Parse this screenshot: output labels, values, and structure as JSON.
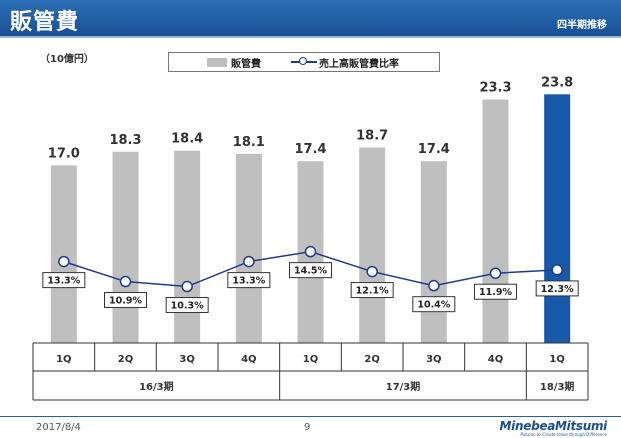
{
  "header": {
    "title": "販管費",
    "subtitle": "四半期推移"
  },
  "unit_label": "（10億円）",
  "legend": {
    "bar_label": "販管費",
    "line_label": "売上高販管費比率"
  },
  "chart_data": {
    "type": "bar",
    "categories": [
      "1Q",
      "2Q",
      "3Q",
      "4Q",
      "1Q",
      "2Q",
      "3Q",
      "4Q",
      "1Q"
    ],
    "groups": [
      {
        "label": "16/3期",
        "count": 4
      },
      {
        "label": "17/3期",
        "count": 4
      },
      {
        "label": "18/3期",
        "count": 1
      }
    ],
    "series": [
      {
        "name": "販管費",
        "values": [
          17.0,
          18.3,
          18.4,
          18.1,
          17.4,
          18.7,
          17.4,
          23.3,
          23.8
        ],
        "labels": [
          "17.0",
          "18.3",
          "18.4",
          "18.1",
          "17.4",
          "18.7",
          "17.4",
          "23.3",
          "23.8"
        ]
      },
      {
        "name": "売上高販管費比率",
        "values": [
          13.3,
          10.9,
          10.3,
          13.3,
          14.5,
          12.1,
          10.4,
          11.9,
          12.3
        ],
        "labels": [
          "13.3%",
          "10.9%",
          "10.3%",
          "13.3%",
          "14.5%",
          "12.1%",
          "10.4%",
          "11.9%",
          "12.3%"
        ]
      }
    ],
    "colors": {
      "bar": "#bfbfbf",
      "highlight_bar": "#1858a8",
      "line": "#1f3c88"
    },
    "highlight_index": 8
  },
  "footer": {
    "date": "2017/8/4",
    "page": "9",
    "logo": "MinebeaMitsumi",
    "tagline": "Passion to Create Value through Difference"
  }
}
